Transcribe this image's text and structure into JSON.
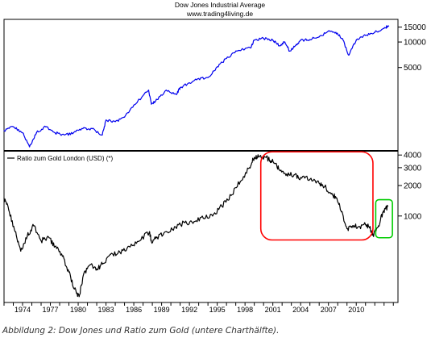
{
  "caption": "Abbildung 2: Dow Jones und Ratio zum Gold (untere Charthälfte).",
  "chart_data": [
    {
      "type": "line",
      "title": "Dow Jones Industrial Average",
      "subtitle": "www.trading4living.de",
      "scale": "log",
      "ylim": [
        520,
        18500
      ],
      "y_ticks": [
        5000,
        10000,
        15000
      ],
      "grid": false,
      "series": [
        {
          "color": "#0000ee",
          "x": [
            1972.0,
            1973.0,
            1974.0,
            1974.75,
            1975.5,
            1976.5,
            1977.5,
            1978.5,
            1979.5,
            1980.5,
            1981.5,
            1982.6,
            1983.0,
            1984.0,
            1985.0,
            1986.0,
            1987.6,
            1987.9,
            1988.5,
            1989.5,
            1990.6,
            1991.0,
            1992.0,
            1993.0,
            1994.0,
            1995.0,
            1996.0,
            1997.0,
            1998.6,
            1999.0,
            2000.0,
            2001.0,
            2001.7,
            2002.3,
            2002.8,
            2003.5,
            2004.0,
            2005.0,
            2006.0,
            2007.0,
            2007.8,
            2008.5,
            2009.2,
            2010.0,
            2011.0,
            2012.0,
            2013.0,
            2013.5
          ],
          "y": [
            900,
            1000,
            850,
            580,
            850,
            1000,
            850,
            800,
            850,
            950,
            950,
            800,
            1200,
            1150,
            1300,
            1800,
            2700,
            1850,
            2100,
            2700,
            2400,
            2900,
            3300,
            3700,
            3800,
            5100,
            6400,
            7800,
            8500,
            10500,
            11000,
            10500,
            9000,
            10000,
            7800,
            9200,
            10500,
            10700,
            11500,
            13500,
            13000,
            11000,
            7000,
            10500,
            12000,
            13000,
            14500,
            15500
          ]
        }
      ]
    },
    {
      "type": "line",
      "title": "",
      "scale": "log",
      "ylim": [
        140,
        4400
      ],
      "y_ticks": [
        1000,
        2000,
        3000,
        4000
      ],
      "x_ticks": [
        "1974",
        "1977",
        "1980",
        "1983",
        "1986",
        "1989",
        "1992",
        "1995",
        "1998",
        "2001",
        "2004",
        "2007",
        "2010"
      ],
      "grid": false,
      "legend": {
        "label": "Ratio zum Gold London (USD) (*)",
        "position": "top-left"
      },
      "series": [
        {
          "name": "Ratio zum Gold London (USD) (*)",
          "color": "#000000",
          "x": [
            1972.0,
            1972.5,
            1973.2,
            1973.8,
            1974.5,
            1975.2,
            1976.0,
            1976.8,
            1977.5,
            1978.3,
            1979.0,
            1979.6,
            1980.1,
            1980.6,
            1981.3,
            1982.0,
            1982.7,
            1983.5,
            1984.5,
            1985.5,
            1986.5,
            1987.7,
            1987.9,
            1988.5,
            1989.5,
            1990.5,
            1991.5,
            1992.5,
            1993.5,
            1994.5,
            1995.5,
            1996.5,
            1997.5,
            1998.5,
            1999.0,
            1999.6,
            2000.3,
            2000.8,
            2001.3,
            2001.8,
            2002.5,
            2003.3,
            2004.0,
            2005.0,
            2006.0,
            2006.6,
            2007.3,
            2007.9,
            2008.4,
            2009.0,
            2009.6,
            2010.2,
            2011.0,
            2011.4,
            2011.8,
            2012.4,
            2012.9,
            2013.4
          ],
          "y": [
            1500,
            1150,
            700,
            450,
            630,
            800,
            570,
            620,
            500,
            400,
            280,
            190,
            160,
            270,
            330,
            300,
            340,
            420,
            440,
            500,
            560,
            700,
            560,
            620,
            700,
            780,
            860,
            880,
            950,
            1000,
            1250,
            1600,
            2200,
            3000,
            3800,
            3900,
            3800,
            3500,
            3300,
            2800,
            2600,
            2550,
            2400,
            2300,
            2100,
            1950,
            1650,
            1500,
            1100,
            750,
            800,
            780,
            820,
            780,
            650,
            800,
            1100,
            1250
          ]
        }
      ],
      "annotations": [
        {
          "shape": "rounded-rectangle",
          "color": "#ff0000"
        },
        {
          "shape": "rounded-rectangle",
          "color": "#00cc00"
        }
      ]
    }
  ]
}
